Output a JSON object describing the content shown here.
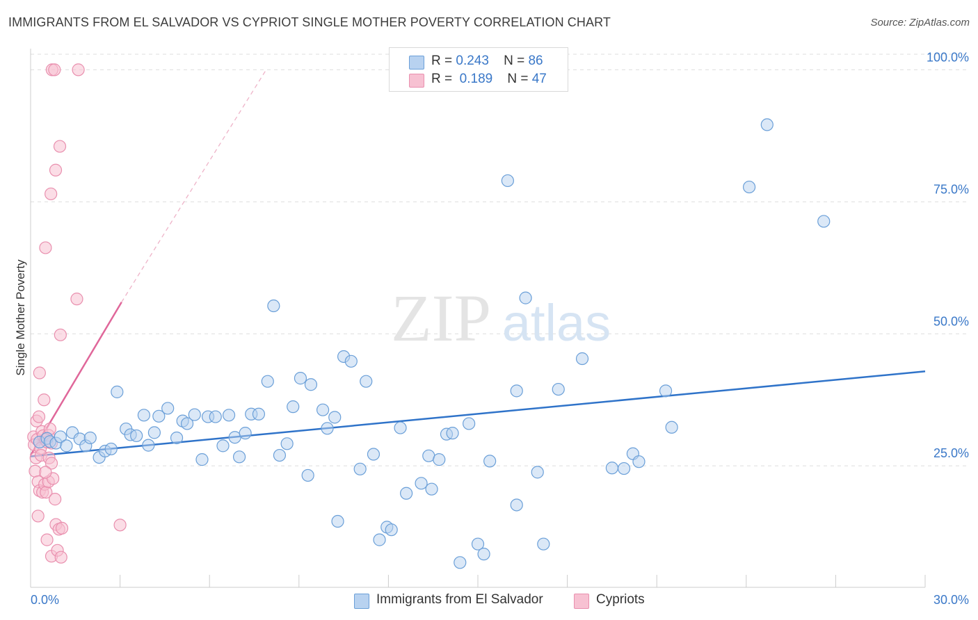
{
  "header": {
    "title": "IMMIGRANTS FROM EL SALVADOR VS CYPRIOT SINGLE MOTHER POVERTY CORRELATION CHART",
    "source": "Source: ZipAtlas.com"
  },
  "watermark": {
    "zip": "ZIP",
    "atlas": "atlas"
  },
  "legend": {
    "rows": [
      {
        "r_label": "R =",
        "r_value": "0.243",
        "n_label": "N =",
        "n_value": "86"
      },
      {
        "r_label": "R =",
        "r_value": "0.189",
        "n_label": "N =",
        "n_value": "47"
      }
    ]
  },
  "colors": {
    "blue_fill": "#b8d2f0",
    "blue_stroke": "#6a9fd8",
    "blue_line": "#2f73c9",
    "pink_fill": "#f7c1d2",
    "pink_stroke": "#e98fae",
    "pink_line": "#e0679a",
    "tick_text": "#3a78c8",
    "grid": "#dddddd"
  },
  "chart_data": {
    "type": "scatter",
    "ylabel": "Single Mother Poverty",
    "x_ticks": [
      "0.0%",
      "30.0%"
    ],
    "y_ticks": [
      "25.0%",
      "50.0%",
      "75.0%",
      "100.0%"
    ],
    "xlim": [
      0,
      30
    ],
    "ylim": [
      2,
      104
    ],
    "grid": "horizontal dashed",
    "legend_position": "top-center and bottom",
    "series": [
      {
        "name": "Immigrants from El Salvador",
        "color": "#6a9fd8",
        "trend": {
          "x": [
            0,
            30
          ],
          "y": [
            26.8,
            42.9
          ]
        },
        "points": [
          [
            0.3,
            29.5
          ],
          [
            0.55,
            30.2
          ],
          [
            0.65,
            29.6
          ],
          [
            0.85,
            29.3
          ],
          [
            1.0,
            30.5
          ],
          [
            1.2,
            28.8
          ],
          [
            1.4,
            31.3
          ],
          [
            1.65,
            30.1
          ],
          [
            1.85,
            28.8
          ],
          [
            2.0,
            30.3
          ],
          [
            2.3,
            26.6
          ],
          [
            2.5,
            27.8
          ],
          [
            2.7,
            28.2
          ],
          [
            2.9,
            39.0
          ],
          [
            3.2,
            32.0
          ],
          [
            3.35,
            30.9
          ],
          [
            3.55,
            30.7
          ],
          [
            3.8,
            34.6
          ],
          [
            3.95,
            28.9
          ],
          [
            4.15,
            31.3
          ],
          [
            4.3,
            34.4
          ],
          [
            4.6,
            35.9
          ],
          [
            4.9,
            30.3
          ],
          [
            5.1,
            33.5
          ],
          [
            5.25,
            33.0
          ],
          [
            5.5,
            34.7
          ],
          [
            5.75,
            26.2
          ],
          [
            5.95,
            34.3
          ],
          [
            6.2,
            34.3
          ],
          [
            6.45,
            28.8
          ],
          [
            6.65,
            34.6
          ],
          [
            6.85,
            30.4
          ],
          [
            7.0,
            26.7
          ],
          [
            7.2,
            31.2
          ],
          [
            7.4,
            34.8
          ],
          [
            7.65,
            34.8
          ],
          [
            7.95,
            41.0
          ],
          [
            8.15,
            55.3
          ],
          [
            8.35,
            27.0
          ],
          [
            8.6,
            29.2
          ],
          [
            8.8,
            36.2
          ],
          [
            9.05,
            41.6
          ],
          [
            9.3,
            23.2
          ],
          [
            9.4,
            40.4
          ],
          [
            9.8,
            35.6
          ],
          [
            9.95,
            32.1
          ],
          [
            10.2,
            34.2
          ],
          [
            10.5,
            45.7
          ],
          [
            10.3,
            14.5
          ],
          [
            10.75,
            44.8
          ],
          [
            11.05,
            24.4
          ],
          [
            11.25,
            41.0
          ],
          [
            11.5,
            27.2
          ],
          [
            11.7,
            11.0
          ],
          [
            11.95,
            13.4
          ],
          [
            12.1,
            12.9
          ],
          [
            12.4,
            32.2
          ],
          [
            12.6,
            19.8
          ],
          [
            13.1,
            21.7
          ],
          [
            13.35,
            26.9
          ],
          [
            13.45,
            20.6
          ],
          [
            13.7,
            26.2
          ],
          [
            13.95,
            31.0
          ],
          [
            14.15,
            31.2
          ],
          [
            14.4,
            6.7
          ],
          [
            14.7,
            33.0
          ],
          [
            15.0,
            10.2
          ],
          [
            15.2,
            8.3
          ],
          [
            15.4,
            25.9
          ],
          [
            16.0,
            79.0
          ],
          [
            16.3,
            39.2
          ],
          [
            16.3,
            17.6
          ],
          [
            16.6,
            56.8
          ],
          [
            17.0,
            23.8
          ],
          [
            17.2,
            10.2
          ],
          [
            17.7,
            39.5
          ],
          [
            18.5,
            45.3
          ],
          [
            19.5,
            24.6
          ],
          [
            19.9,
            24.5
          ],
          [
            20.2,
            27.3
          ],
          [
            20.4,
            25.8
          ],
          [
            21.3,
            39.2
          ],
          [
            21.5,
            32.3
          ],
          [
            24.1,
            77.8
          ],
          [
            24.7,
            89.6
          ],
          [
            26.6,
            71.3
          ]
        ]
      },
      {
        "name": "Cypriots",
        "color": "#e98fae",
        "trend": {
          "x": [
            0,
            3.05
          ],
          "y": [
            27.0,
            56.0
          ],
          "dash": {
            "x": [
              3.05,
              7.9
            ],
            "y": [
              56.0,
              100.0
            ]
          }
        },
        "points": [
          [
            0.1,
            30.5
          ],
          [
            0.12,
            29.0
          ],
          [
            0.15,
            24.0
          ],
          [
            0.18,
            26.5
          ],
          [
            0.2,
            33.5
          ],
          [
            0.22,
            30.0
          ],
          [
            0.25,
            22.0
          ],
          [
            0.25,
            15.5
          ],
          [
            0.28,
            34.3
          ],
          [
            0.3,
            20.3
          ],
          [
            0.3,
            42.6
          ],
          [
            0.33,
            28.3
          ],
          [
            0.35,
            27.0
          ],
          [
            0.38,
            31.5
          ],
          [
            0.4,
            20.0
          ],
          [
            0.42,
            30.7
          ],
          [
            0.45,
            37.5
          ],
          [
            0.47,
            21.5
          ],
          [
            0.5,
            66.3
          ],
          [
            0.5,
            30.0
          ],
          [
            0.52,
            20.0
          ],
          [
            0.55,
            29.5
          ],
          [
            0.55,
            11.0
          ],
          [
            0.6,
            30.8
          ],
          [
            0.6,
            22.0
          ],
          [
            0.62,
            26.5
          ],
          [
            0.65,
            32.0
          ],
          [
            0.7,
            25.5
          ],
          [
            0.7,
            29.3
          ],
          [
            0.72,
            100.0
          ],
          [
            0.7,
            7.9
          ],
          [
            0.68,
            76.5
          ],
          [
            0.75,
            22.6
          ],
          [
            0.8,
            100.0
          ],
          [
            0.82,
            18.7
          ],
          [
            0.84,
            81.0
          ],
          [
            0.85,
            13.9
          ],
          [
            0.9,
            9.0
          ],
          [
            0.95,
            13.0
          ],
          [
            1.0,
            49.8
          ],
          [
            0.98,
            85.5
          ],
          [
            1.02,
            7.7
          ],
          [
            1.05,
            13.2
          ],
          [
            1.6,
            100.0
          ],
          [
            1.55,
            56.6
          ],
          [
            3.0,
            13.8
          ],
          [
            0.5,
            23.8
          ]
        ]
      }
    ]
  },
  "bottom_legend": [
    {
      "label": "Immigrants from El Salvador"
    },
    {
      "label": "Cypriots"
    }
  ]
}
